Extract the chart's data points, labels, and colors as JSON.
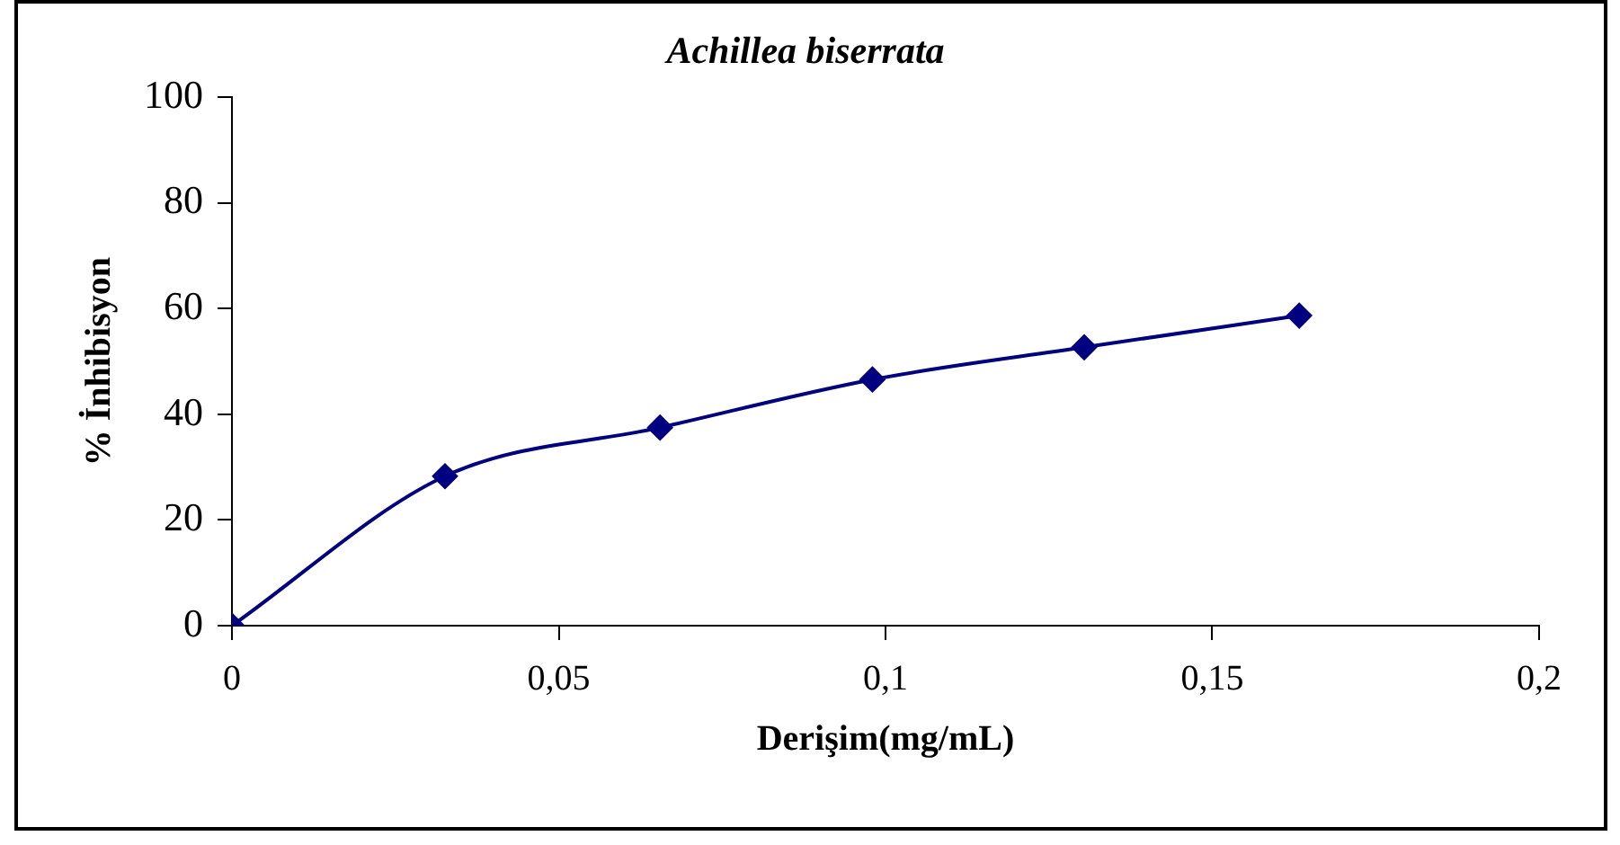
{
  "chart_data": {
    "type": "line",
    "title": "Achillea biserrata",
    "xlabel": "Derişim(mg/mL)",
    "ylabel": "% İnhibisyon",
    "x": [
      0,
      0.0326,
      0.0655,
      0.098,
      0.1304,
      0.1633
    ],
    "series": [
      {
        "color": "#000080",
        "values": [
          0,
          28.3,
          37.5,
          46.6,
          52.7,
          58.7
        ]
      }
    ],
    "xlim": [
      0,
      0.2
    ],
    "xticks": [
      {
        "value": 0,
        "label": "0"
      },
      {
        "value": 0.05,
        "label": "0,05"
      },
      {
        "value": 0.1,
        "label": "0,1"
      },
      {
        "value": 0.15,
        "label": "0,15"
      },
      {
        "value": 0.2,
        "label": "0,2"
      }
    ],
    "ylim": [
      0,
      100
    ],
    "yticks": [
      0,
      20,
      40,
      60,
      80,
      100
    ],
    "grid": false,
    "legend": false,
    "marker": "diamond",
    "line_style": "solid"
  }
}
